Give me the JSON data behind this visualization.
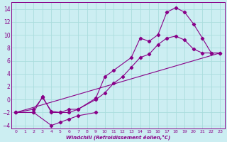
{
  "xlabel": "Windchill (Refroidissement éolien,°C)",
  "bg_color": "#cceef2",
  "grid_color": "#aadddd",
  "line_color": "#880088",
  "xlim": [
    -0.5,
    23.5
  ],
  "ylim": [
    -4.5,
    15.0
  ],
  "xticks": [
    0,
    1,
    2,
    3,
    4,
    5,
    6,
    7,
    8,
    9,
    10,
    11,
    12,
    13,
    14,
    15,
    16,
    17,
    18,
    19,
    20,
    21,
    22,
    23
  ],
  "yticks": [
    -4,
    -2,
    0,
    2,
    4,
    6,
    8,
    10,
    12,
    14
  ],
  "line1_x": [
    0,
    2,
    3,
    4,
    5,
    6,
    7,
    9,
    10,
    11,
    13,
    14,
    15,
    16,
    17,
    18,
    19,
    20,
    21,
    22,
    23
  ],
  "line1_y": [
    -2,
    -2,
    0.5,
    -2,
    -2,
    -1.5,
    -1.5,
    0.2,
    3.5,
    4.5,
    6.5,
    9.5,
    9.0,
    10.0,
    13.5,
    14.2,
    13.5,
    11.7,
    9.5,
    7.2,
    7.2
  ],
  "line2_x": [
    0,
    2,
    3,
    4,
    5,
    6,
    7,
    9,
    10,
    11,
    12,
    13,
    14,
    15,
    16,
    17,
    18,
    19,
    20,
    21,
    22,
    23
  ],
  "line2_y": [
    -2,
    -1.5,
    0.3,
    -1.8,
    -2,
    -2.0,
    -1.5,
    0.0,
    1.0,
    2.5,
    3.5,
    5.0,
    6.5,
    7.0,
    8.5,
    9.5,
    9.8,
    9.2,
    7.8,
    7.2,
    7.2,
    7.2
  ],
  "line3_x": [
    0,
    23
  ],
  "line3_y": [
    -2,
    7.2
  ],
  "line4_x": [
    0,
    2,
    4,
    5,
    6,
    7,
    9
  ],
  "line4_y": [
    -2,
    -2,
    -4,
    -3.5,
    -3.0,
    -2.5,
    -2.0
  ]
}
